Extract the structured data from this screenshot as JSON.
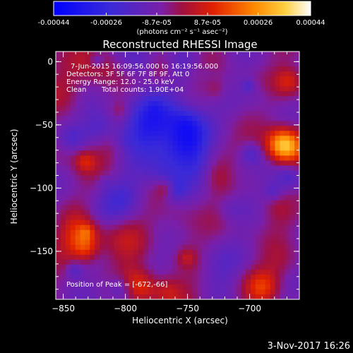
{
  "colorbar": {
    "tick_labels": [
      "-0.00044",
      "-0.00026",
      "-8.7e-05",
      "8.7e-05",
      "0.00026",
      "0.00044"
    ],
    "tick_values": [
      -0.00044,
      -0.00026,
      -8.7e-05,
      8.7e-05,
      0.00026,
      0.00044
    ],
    "range": [
      -0.00044,
      0.00044
    ],
    "units_label": "(photons cm⁻² s⁻¹ asec⁻²)"
  },
  "chart_data": {
    "type": "heatmap",
    "title": "Reconstructed RHESSI Image",
    "xlabel": "Heliocentric X (arcsec)",
    "ylabel": "Heliocentric Y (arcsec)",
    "xlim": [
      -856,
      -660
    ],
    "ylim": [
      -188,
      8
    ],
    "x_ticks": [
      -850,
      -800,
      -750,
      -700
    ],
    "x_tick_labels": [
      "−850",
      "−800",
      "−750",
      "−700"
    ],
    "y_ticks": [
      0,
      -50,
      -100,
      -150
    ],
    "y_tick_labels": [
      "0",
      "−50",
      "−100",
      "−150"
    ],
    "peak": [
      -672,
      -66
    ],
    "colormap": [
      "#0000e0",
      "#3b2fd0",
      "#6a2cc0",
      "#7a2a7a",
      "#b01010",
      "#e04000",
      "#ff8800",
      "#ffcc20",
      "#ffffff"
    ]
  },
  "annotations": {
    "line1": "7-Jun-2015 16:09:56.000 to 16:19:56.000",
    "line2": "Detectors: 3F 5F 6F 7F 8F 9F, Att 0",
    "line3": "Energy Range: 12.0 - 25.0 keV",
    "line4_a": "Clean",
    "line4_b": "Total counts: 1.90E+04",
    "peak_label": "Position of Peak = [-672,-66]"
  },
  "footer": {
    "timestamp": "3-Nov-2017 16:26"
  }
}
